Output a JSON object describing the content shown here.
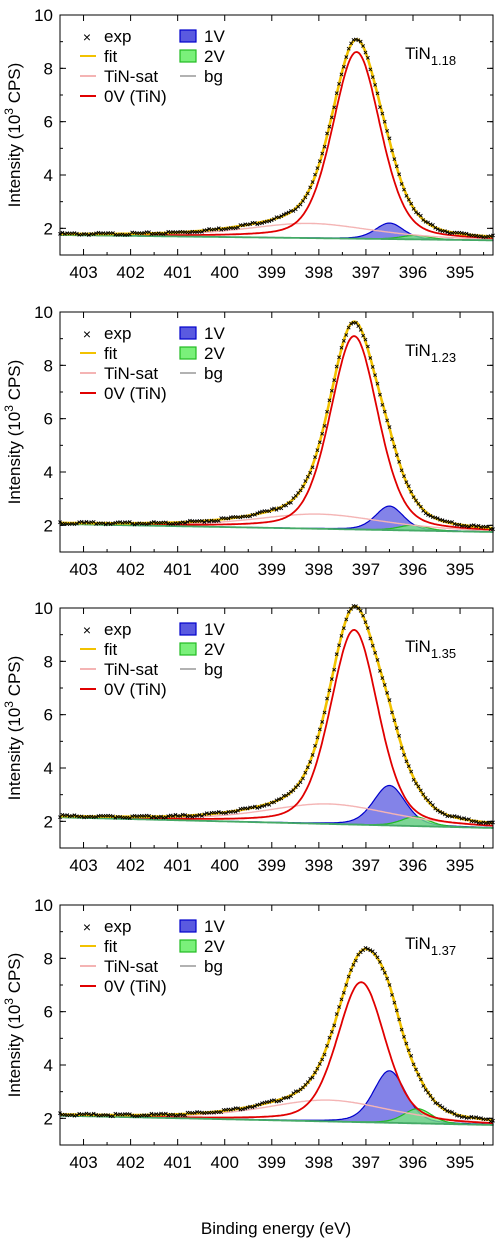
{
  "figure": {
    "xlabel": "Binding energy (eV)",
    "ylabel": "Intensity (10",
    "ylabel_sup": "3",
    "ylabel_tail": " CPS)"
  },
  "colors": {
    "exp": "#000000",
    "fit": "#f2c200",
    "sat": "#f4b4b4",
    "tin": "#e00000",
    "v1_fill": "#5a5ae0",
    "v1_line": "#0000cc",
    "v2_fill": "#7af07a",
    "v2_line": "#22bb22",
    "bg": "#999999",
    "bg_mix": "#44aa66"
  },
  "legend": {
    "exp": "exp",
    "fit": "fit",
    "sat": "TiN-sat",
    "tin": "0V (TiN)",
    "v1": "1V",
    "v2": "2V",
    "bg": "bg"
  },
  "chart_data": [
    {
      "type": "line",
      "sample_label": "TiN",
      "sample_sub": "1.18",
      "x_range": [
        403.5,
        394.3
      ],
      "ylim": [
        1,
        10
      ],
      "x_ticks": [
        "403",
        "402",
        "401",
        "400",
        "399",
        "398",
        "397",
        "396",
        "395"
      ],
      "y_ticks": [
        "2",
        "4",
        "6",
        "8",
        "10"
      ],
      "background": {
        "x": [
          403.5,
          394.3
        ],
        "y": [
          1.75,
          1.55
        ]
      },
      "components": [
        {
          "name": "TiN-sat",
          "center": 398.2,
          "height": 0.55,
          "width": 1.6
        },
        {
          "name": "0V (TiN)",
          "center": 397.2,
          "height": 7.0,
          "width": 0.6
        },
        {
          "name": "1V",
          "center": 396.5,
          "height": 0.6,
          "width": 0.35
        },
        {
          "name": "2V",
          "center": 395.95,
          "height": 0.15,
          "width": 0.35
        }
      ],
      "peak_max": 9.1
    },
    {
      "type": "line",
      "sample_label": "TiN",
      "sample_sub": "1.23",
      "x_range": [
        403.5,
        394.3
      ],
      "ylim": [
        1,
        10
      ],
      "x_ticks": [
        "403",
        "402",
        "401",
        "400",
        "399",
        "398",
        "397",
        "396",
        "395"
      ],
      "y_ticks": [
        "2",
        "4",
        "6",
        "8",
        "10"
      ],
      "background": {
        "x": [
          403.5,
          394.3
        ],
        "y": [
          2.05,
          1.75
        ]
      },
      "components": [
        {
          "name": "TiN-sat",
          "center": 398.0,
          "height": 0.55,
          "width": 1.6
        },
        {
          "name": "0V (TiN)",
          "center": 397.25,
          "height": 7.25,
          "width": 0.6
        },
        {
          "name": "1V",
          "center": 396.5,
          "height": 0.9,
          "width": 0.35
        },
        {
          "name": "2V",
          "center": 396.0,
          "height": 0.2,
          "width": 0.35
        }
      ],
      "peak_max": 9.6
    },
    {
      "type": "line",
      "sample_label": "TiN",
      "sample_sub": "1.35",
      "x_range": [
        403.5,
        394.3
      ],
      "ylim": [
        1,
        10
      ],
      "x_ticks": [
        "403",
        "402",
        "401",
        "400",
        "399",
        "398",
        "397",
        "396",
        "395"
      ],
      "y_ticks": [
        "2",
        "4",
        "6",
        "8",
        "10"
      ],
      "background": {
        "x": [
          403.5,
          394.3
        ],
        "y": [
          2.15,
          1.75
        ]
      },
      "components": [
        {
          "name": "TiN-sat",
          "center": 397.8,
          "height": 0.75,
          "width": 1.6
        },
        {
          "name": "0V (TiN)",
          "center": 397.25,
          "height": 7.3,
          "width": 0.6
        },
        {
          "name": "1V",
          "center": 396.5,
          "height": 1.5,
          "width": 0.4
        },
        {
          "name": "2V",
          "center": 395.95,
          "height": 0.35,
          "width": 0.35
        }
      ],
      "peak_max": 10.0
    },
    {
      "type": "line",
      "sample_label": "TiN",
      "sample_sub": "1.37",
      "x_range": [
        403.5,
        394.3
      ],
      "ylim": [
        1,
        10
      ],
      "x_ticks": [
        "403",
        "402",
        "401",
        "400",
        "399",
        "398",
        "397",
        "396",
        "395"
      ],
      "y_ticks": [
        "2",
        "4",
        "6",
        "8",
        "10"
      ],
      "background": {
        "x": [
          403.5,
          394.3
        ],
        "y": [
          2.1,
          1.75
        ]
      },
      "components": [
        {
          "name": "TiN-sat",
          "center": 397.8,
          "height": 0.8,
          "width": 1.6
        },
        {
          "name": "0V (TiN)",
          "center": 397.1,
          "height": 5.25,
          "width": 0.6
        },
        {
          "name": "1V",
          "center": 396.5,
          "height": 1.95,
          "width": 0.4
        },
        {
          "name": "2V",
          "center": 395.9,
          "height": 0.55,
          "width": 0.35
        }
      ],
      "peak_max": 8.1
    }
  ]
}
